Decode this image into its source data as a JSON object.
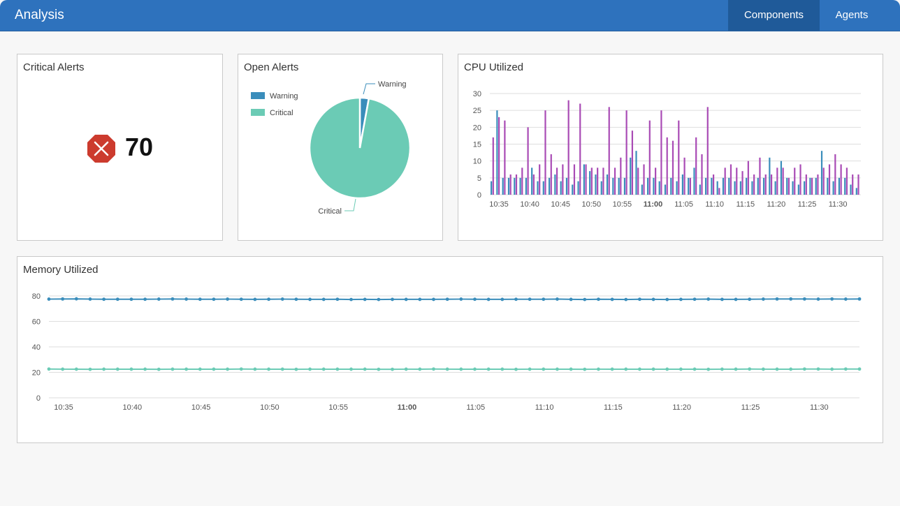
{
  "app": {
    "title": "Analysis",
    "tabs": [
      {
        "label": "Components",
        "active": true
      },
      {
        "label": "Agents",
        "active": false
      }
    ]
  },
  "colors": {
    "header": "#2e72bd",
    "tab_active": "#1f5a99",
    "warning": "#3a8dbb",
    "critical": "#6bcbb5",
    "cpu_series_a": "#3a8dbb",
    "cpu_series_b": "#a94bb5",
    "alert_icon": "#cc3b2e"
  },
  "critical_alerts": {
    "title": "Critical Alerts",
    "icon": "octagon-x-icon",
    "count": "70"
  },
  "open_alerts": {
    "title": "Open Alerts"
  },
  "cpu_panel": {
    "title": "CPU Utilized"
  },
  "memory_panel": {
    "title": "Memory Utilized"
  },
  "chart_data": [
    {
      "type": "pie",
      "legend_position": "top-left",
      "labels": [
        "Warning",
        "Critical"
      ],
      "values": [
        2,
        68
      ]
    },
    {
      "type": "bar",
      "ylim": [
        0,
        30
      ],
      "yticks": [
        0,
        5,
        10,
        15,
        20,
        25,
        30
      ],
      "grid": true,
      "xtick_labels": [
        "10:35",
        "10:40",
        "10:45",
        "10:50",
        "10:55",
        "11:00",
        "11:05",
        "11:10",
        "11:15",
        "11:20",
        "11:25",
        "11:30"
      ],
      "bold_tick": "11:00",
      "series": [
        {
          "values": [
            4,
            25,
            5,
            5,
            5,
            5,
            5,
            8,
            4,
            4,
            5,
            6,
            4,
            5,
            3,
            4,
            9,
            7,
            6,
            4,
            6,
            5,
            5,
            5,
            11,
            13,
            3,
            5,
            5,
            4,
            3,
            5,
            4,
            6,
            5,
            8,
            3,
            5,
            5,
            4,
            5,
            5,
            4,
            4,
            5,
            4,
            5,
            5,
            11,
            4,
            10,
            5,
            4,
            3,
            4,
            5,
            5,
            13,
            5,
            4,
            5,
            5,
            3,
            2
          ]
        },
        {
          "values": [
            17,
            23,
            22,
            6,
            6,
            8,
            20,
            6,
            9,
            25,
            12,
            8,
            9,
            28,
            9,
            27,
            9,
            8,
            8,
            8,
            26,
            8,
            11,
            25,
            19,
            8,
            9,
            22,
            8,
            25,
            17,
            16,
            22,
            11,
            5,
            17,
            12,
            26,
            6,
            2,
            8,
            9,
            8,
            7,
            10,
            6,
            11,
            6,
            6,
            8,
            8,
            5,
            8,
            9,
            6,
            5,
            6,
            8,
            9,
            12,
            9,
            8,
            6,
            6
          ]
        }
      ]
    },
    {
      "type": "line",
      "ylim": [
        0,
        80
      ],
      "yticks": [
        0,
        20,
        40,
        60,
        80
      ],
      "grid": true,
      "xtick_labels": [
        "10:35",
        "10:40",
        "10:45",
        "10:50",
        "10:55",
        "11:00",
        "11:05",
        "11:10",
        "11:15",
        "11:20",
        "11:25",
        "11:30"
      ],
      "bold_tick": "11:00",
      "series": [
        {
          "values": [
            77.5,
            77.6,
            77.7,
            77.5,
            77.4,
            77.4,
            77.4,
            77.4,
            77.5,
            77.6,
            77.5,
            77.4,
            77.4,
            77.5,
            77.4,
            77.3,
            77.4,
            77.5,
            77.4,
            77.3,
            77.3,
            77.4,
            77.2,
            77.3,
            77.2,
            77.3,
            77.3,
            77.3,
            77.3,
            77.4,
            77.5,
            77.4,
            77.3,
            77.3,
            77.4,
            77.4,
            77.4,
            77.5,
            77.3,
            77.2,
            77.4,
            77.3,
            77.2,
            77.4,
            77.3,
            77.2,
            77.3,
            77.4,
            77.5,
            77.3,
            77.3,
            77.4,
            77.5,
            77.6,
            77.6,
            77.6,
            77.5,
            77.6,
            77.5,
            77.6
          ]
        },
        {
          "values": [
            22.6,
            22.5,
            22.5,
            22.4,
            22.5,
            22.5,
            22.5,
            22.5,
            22.4,
            22.5,
            22.5,
            22.5,
            22.5,
            22.5,
            22.6,
            22.5,
            22.5,
            22.5,
            22.4,
            22.5,
            22.5,
            22.5,
            22.5,
            22.5,
            22.4,
            22.4,
            22.5,
            22.5,
            22.6,
            22.5,
            22.5,
            22.5,
            22.5,
            22.5,
            22.4,
            22.5,
            22.5,
            22.5,
            22.5,
            22.4,
            22.5,
            22.5,
            22.5,
            22.5,
            22.5,
            22.5,
            22.5,
            22.5,
            22.4,
            22.5,
            22.5,
            22.6,
            22.5,
            22.5,
            22.5,
            22.6,
            22.6,
            22.5,
            22.6,
            22.6
          ]
        }
      ]
    }
  ]
}
